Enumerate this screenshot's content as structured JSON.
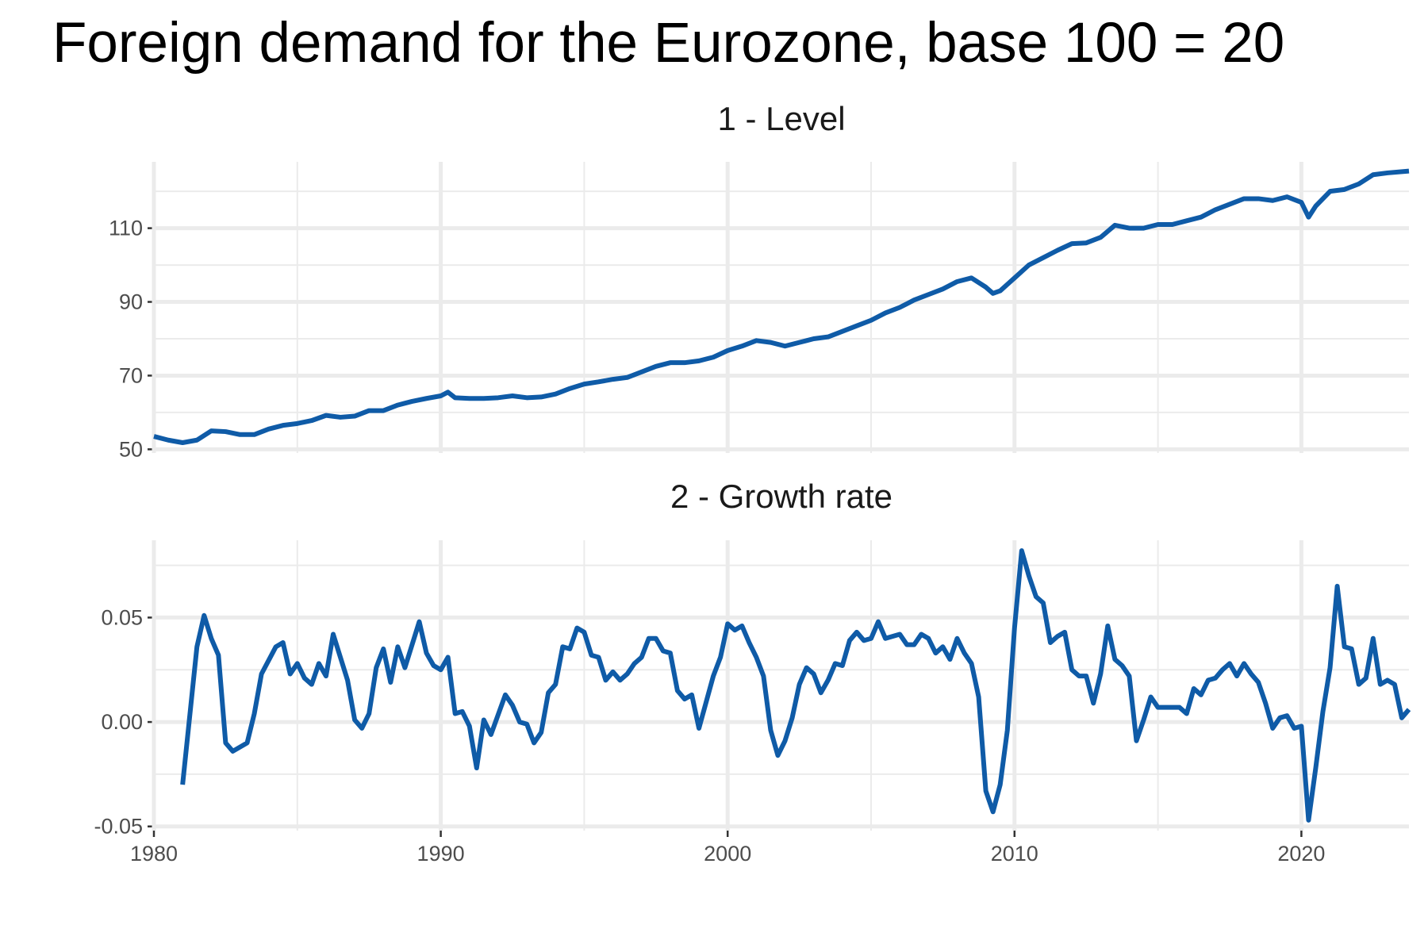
{
  "title": "Foreign demand for the Eurozone, base 100 = 20",
  "chart_data": [
    {
      "type": "line",
      "title": "1 - Level",
      "show_xtick_labels": false,
      "x": [
        1980,
        1980.5,
        1981,
        1981.5,
        1982,
        1982.5,
        1983,
        1983.5,
        1984,
        1984.5,
        1985,
        1985.5,
        1986,
        1986.5,
        1987,
        1987.5,
        1988,
        1988.5,
        1989,
        1989.5,
        1990,
        1990.25,
        1990.5,
        1991,
        1991.5,
        1992,
        1992.5,
        1993,
        1993.5,
        1994,
        1994.5,
        1995,
        1995.5,
        1996,
        1996.5,
        1997,
        1997.5,
        1998,
        1998.5,
        1999,
        1999.5,
        2000,
        2000.5,
        2001,
        2001.5,
        2002,
        2002.5,
        2003,
        2003.5,
        2004,
        2004.5,
        2005,
        2005.5,
        2006,
        2006.5,
        2007,
        2007.5,
        2008,
        2008.5,
        2009,
        2009.25,
        2009.5,
        2010,
        2010.5,
        2011,
        2011.5,
        2012,
        2012.5,
        2013,
        2013.5,
        2014,
        2014.5,
        2015,
        2015.5,
        2016,
        2016.5,
        2017,
        2017.5,
        2018,
        2018.5,
        2019,
        2019.5,
        2020,
        2020.25,
        2020.5,
        2021,
        2021.5,
        2022,
        2022.5,
        2023,
        2023.75
      ],
      "series": [
        {
          "name": "Level",
          "color": "#0f5ba7",
          "values": [
            53.5,
            52.5,
            51.8,
            52.5,
            55,
            54.8,
            54,
            54,
            55.5,
            56.5,
            57,
            57.8,
            59.2,
            58.7,
            59,
            60.5,
            60.5,
            62,
            63,
            63.8,
            64.5,
            65.5,
            64,
            63.8,
            63.8,
            64,
            64.5,
            64,
            64.2,
            65,
            66.5,
            67.7,
            68.3,
            69,
            69.5,
            71,
            72.5,
            73.5,
            73.5,
            74,
            75,
            76.8,
            78,
            79.5,
            79,
            78,
            79,
            80,
            80.5,
            82,
            83.5,
            85,
            87,
            88.5,
            90.5,
            92,
            93.5,
            95.5,
            96.5,
            94,
            92.3,
            93,
            96.5,
            100,
            102,
            104,
            105.8,
            106,
            107.5,
            110.8,
            110,
            110,
            111,
            111,
            112,
            113,
            115,
            116.5,
            118,
            118,
            117.5,
            118.5,
            117,
            113,
            116,
            120,
            120.5,
            122,
            124.5,
            125,
            125.5
          ]
        }
      ],
      "xlim": [
        1980,
        2023.75
      ],
      "xticks": [
        1980,
        1990,
        2000,
        2010,
        2020
      ],
      "x_minor_grid": [
        1985,
        1995,
        2005,
        2015
      ],
      "ylim": [
        49,
        128
      ],
      "yticks": [
        50,
        70,
        90,
        110
      ],
      "y_minor_grid": [
        60,
        80,
        100,
        120
      ],
      "grid": true
    },
    {
      "type": "line",
      "title": "2 - Growth rate",
      "show_xtick_labels": true,
      "x": [
        1981,
        1981.5,
        1981.75,
        1982,
        1982.25,
        1982.5,
        1982.75,
        1983.25,
        1983.5,
        1983.75,
        1984.25,
        1984.5,
        1984.75,
        1985,
        1985.25,
        1985.5,
        1985.75,
        1986,
        1986.25,
        1986.75,
        1987,
        1987.25,
        1987.5,
        1987.75,
        1988,
        1988.25,
        1988.5,
        1988.75,
        1989.25,
        1989.5,
        1989.75,
        1990,
        1990.25,
        1990.5,
        1990.75,
        1991,
        1991.25,
        1991.5,
        1991.75,
        1992.25,
        1992.5,
        1992.75,
        1993,
        1993.25,
        1993.5,
        1993.75,
        1994,
        1994.25,
        1994.5,
        1994.75,
        1995,
        1995.25,
        1995.5,
        1995.75,
        1996,
        1996.25,
        1996.5,
        1996.75,
        1997,
        1997.25,
        1997.5,
        1997.75,
        1998,
        1998.25,
        1998.5,
        1998.75,
        1999,
        1999.5,
        1999.75,
        2000,
        2000.25,
        2000.5,
        2000.75,
        2001,
        2001.25,
        2001.5,
        2001.75,
        2002,
        2002.25,
        2002.5,
        2002.75,
        2003,
        2003.25,
        2003.5,
        2003.75,
        2004,
        2004.25,
        2004.5,
        2004.75,
        2005,
        2005.25,
        2005.5,
        2006,
        2006.25,
        2006.5,
        2006.75,
        2007,
        2007.25,
        2007.5,
        2007.75,
        2008,
        2008.25,
        2008.5,
        2008.75,
        2009,
        2009.25,
        2009.5,
        2009.75,
        2010,
        2010.25,
        2010.5,
        2010.75,
        2011,
        2011.25,
        2011.5,
        2011.75,
        2012,
        2012.25,
        2012.5,
        2012.75,
        2013,
        2013.25,
        2013.5,
        2013.75,
        2014,
        2014.25,
        2014.5,
        2014.75,
        2015,
        2015.5,
        2015.75,
        2016,
        2016.25,
        2016.5,
        2016.75,
        2017,
        2017.25,
        2017.5,
        2017.75,
        2018,
        2018.25,
        2018.5,
        2018.75,
        2019,
        2019.25,
        2019.5,
        2019.75,
        2020,
        2020.25,
        2020.5,
        2020.75,
        2021,
        2021.25,
        2021.5,
        2021.75,
        2022,
        2022.25,
        2022.5,
        2022.75,
        2023,
        2023.25,
        2023.5,
        2023.75
      ],
      "series": [
        {
          "name": "Growth rate",
          "color": "#0f5ba7",
          "values": [
            -0.03,
            0.036,
            0.051,
            0.04,
            0.032,
            -0.01,
            -0.014,
            -0.01,
            0.004,
            0.023,
            0.036,
            0.038,
            0.023,
            0.028,
            0.021,
            0.018,
            0.028,
            0.022,
            0.042,
            0.02,
            0.001,
            -0.003,
            0.004,
            0.026,
            0.035,
            0.019,
            0.036,
            0.026,
            0.048,
            0.033,
            0.027,
            0.025,
            0.031,
            0.004,
            0.005,
            -0.002,
            -0.022,
            0.001,
            -0.006,
            0.013,
            0.008,
            0.0,
            -0.001,
            -0.01,
            -0.005,
            0.014,
            0.018,
            0.036,
            0.035,
            0.045,
            0.043,
            0.032,
            0.031,
            0.02,
            0.024,
            0.02,
            0.023,
            0.028,
            0.031,
            0.04,
            0.04,
            0.034,
            0.033,
            0.015,
            0.011,
            0.013,
            -0.003,
            0.022,
            0.031,
            0.047,
            0.044,
            0.046,
            0.038,
            0.031,
            0.022,
            -0.004,
            -0.016,
            -0.009,
            0.002,
            0.018,
            0.026,
            0.023,
            0.014,
            0.02,
            0.028,
            0.027,
            0.039,
            0.043,
            0.039,
            0.04,
            0.048,
            0.04,
            0.042,
            0.037,
            0.037,
            0.042,
            0.04,
            0.033,
            0.036,
            0.03,
            0.04,
            0.033,
            0.028,
            0.012,
            -0.033,
            -0.043,
            -0.03,
            -0.004,
            0.045,
            0.082,
            0.07,
            0.06,
            0.057,
            0.038,
            0.041,
            0.043,
            0.025,
            0.022,
            0.022,
            0.009,
            0.023,
            0.046,
            0.03,
            0.027,
            0.022,
            -0.009,
            0.001,
            0.012,
            0.007,
            0.007,
            0.007,
            0.004,
            0.016,
            0.013,
            0.02,
            0.021,
            0.025,
            0.028,
            0.022,
            0.028,
            0.023,
            0.019,
            0.009,
            -0.003,
            0.002,
            0.003,
            -0.003,
            -0.002,
            -0.047,
            -0.022,
            0.005,
            0.026,
            0.065,
            0.036,
            0.035,
            0.018,
            0.021,
            0.04,
            0.018,
            0.02,
            0.018,
            0.002,
            0.006
          ]
        }
      ],
      "xlim": [
        1980,
        2023.75
      ],
      "xticks": [
        1980,
        1990,
        2000,
        2010,
        2020
      ],
      "x_minor_grid": [
        1985,
        1995,
        2005,
        2015
      ],
      "ylim": [
        -0.052,
        0.087
      ],
      "yticks": [
        {
          "value": -0.05,
          "label": "-0.05"
        },
        {
          "value": 0,
          "label": "0.00"
        },
        {
          "value": 0.05,
          "label": "0.05"
        }
      ],
      "y_minor_grid": [
        -0.025,
        0.025,
        0.075
      ],
      "grid": true
    }
  ]
}
